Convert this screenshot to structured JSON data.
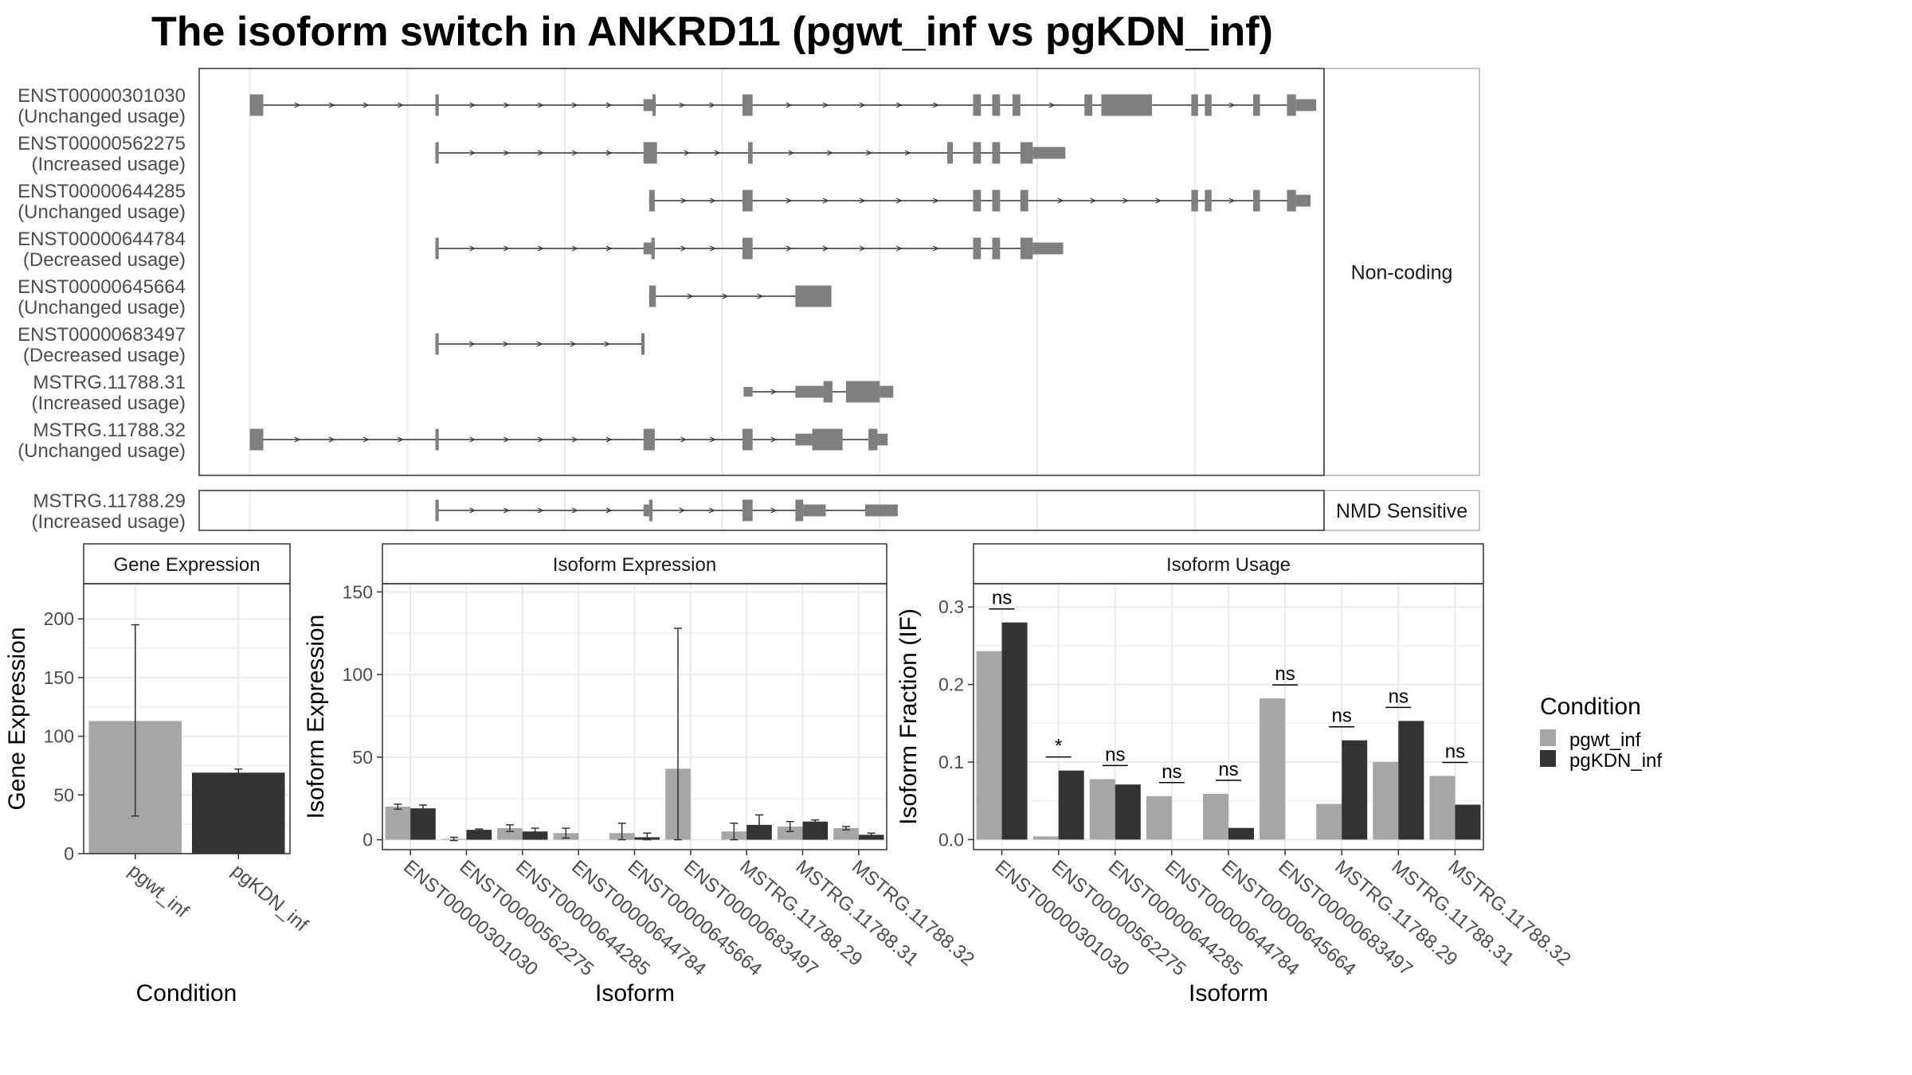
{
  "title": "The isoform switch in ANKRD11 (pgwt_inf vs pgKDN_inf)",
  "colors": {
    "exon": "#7f7f7f",
    "pgwt_inf": "#a6a6a6",
    "pgKDN_inf": "#333333",
    "grid": "#ebebeb",
    "panel_border": "#333333",
    "strip_fill": "#ffffff"
  },
  "chart_data": [
    {
      "type": "gene_structure",
      "facets": [
        "Non-coding",
        "NMD Sensitive"
      ],
      "x_range": [
        0,
        1
      ],
      "gridlines": [
        0.045,
        0.185,
        0.325,
        0.465,
        0.605,
        0.745,
        0.885
      ],
      "transcripts": [
        {
          "id": "ENST00000301030",
          "usage": "(Unchanged usage)",
          "facet": "Non-coding",
          "exons": [
            [
              0.045,
              0.057,
              1
            ],
            [
              0.21,
              0.213,
              1
            ],
            [
              0.395,
              0.405,
              0.55
            ],
            [
              0.405,
              0.403,
              1
            ],
            [
              0.483,
              0.492,
              1
            ],
            [
              0.688,
              0.695,
              1
            ],
            [
              0.705,
              0.712,
              1
            ],
            [
              0.723,
              0.73,
              1
            ],
            [
              0.787,
              0.794,
              1
            ],
            [
              0.802,
              0.847,
              1
            ],
            [
              0.882,
              0.888,
              1
            ],
            [
              0.894,
              0.9,
              1
            ],
            [
              0.937,
              0.943,
              1
            ],
            [
              0.967,
              0.975,
              1
            ],
            [
              0.975,
              0.993,
              0.55
            ]
          ]
        },
        {
          "id": "ENST00000562275",
          "usage": "(Increased usage)",
          "facet": "Non-coding",
          "exons": [
            [
              0.21,
              0.213,
              1
            ],
            [
              0.395,
              0.407,
              1
            ],
            [
              0.488,
              0.492,
              1
            ],
            [
              0.665,
              0.67,
              1
            ],
            [
              0.688,
              0.695,
              1
            ],
            [
              0.705,
              0.712,
              1
            ],
            [
              0.73,
              0.741,
              1
            ],
            [
              0.741,
              0.77,
              0.55
            ]
          ]
        },
        {
          "id": "ENST00000644285",
          "usage": "(Unchanged usage)",
          "facet": "Non-coding",
          "exons": [
            [
              0.4,
              0.405,
              1
            ],
            [
              0.483,
              0.492,
              1
            ],
            [
              0.688,
              0.695,
              1
            ],
            [
              0.705,
              0.712,
              1
            ],
            [
              0.73,
              0.737,
              1
            ],
            [
              0.882,
              0.888,
              1
            ],
            [
              0.894,
              0.9,
              1
            ],
            [
              0.937,
              0.943,
              1
            ],
            [
              0.967,
              0.975,
              1
            ],
            [
              0.975,
              0.988,
              0.55
            ]
          ]
        },
        {
          "id": "ENST00000644784",
          "usage": "(Decreased usage)",
          "facet": "Non-coding",
          "exons": [
            [
              0.21,
              0.213,
              1
            ],
            [
              0.395,
              0.405,
              0.55
            ],
            [
              0.402,
              0.405,
              1
            ],
            [
              0.483,
              0.492,
              1
            ],
            [
              0.688,
              0.695,
              1
            ],
            [
              0.705,
              0.712,
              1
            ],
            [
              0.73,
              0.741,
              1
            ],
            [
              0.741,
              0.768,
              0.55
            ]
          ]
        },
        {
          "id": "ENST00000645664",
          "usage": "(Unchanged usage)",
          "facet": "Non-coding",
          "exons": [
            [
              0.4,
              0.406,
              1
            ],
            [
              0.53,
              0.562,
              1
            ]
          ]
        },
        {
          "id": "ENST00000683497",
          "usage": "(Decreased usage)",
          "facet": "Non-coding",
          "exons": [
            [
              0.21,
              0.213,
              1
            ],
            [
              0.393,
              0.396,
              1
            ]
          ]
        },
        {
          "id": "MSTRG.11788.31",
          "usage": "(Increased usage)",
          "facet": "Non-coding",
          "exons": [
            [
              0.484,
              0.492,
              0.45
            ],
            [
              0.53,
              0.555,
              0.55
            ],
            [
              0.555,
              0.563,
              1
            ],
            [
              0.575,
              0.605,
              1
            ],
            [
              0.605,
              0.617,
              0.55
            ]
          ]
        },
        {
          "id": "MSTRG.11788.32",
          "usage": "(Unchanged usage)",
          "facet": "Non-coding",
          "exons": [
            [
              0.045,
              0.057,
              1
            ],
            [
              0.21,
              0.213,
              1
            ],
            [
              0.395,
              0.405,
              1
            ],
            [
              0.483,
              0.492,
              1
            ],
            [
              0.53,
              0.545,
              0.55
            ],
            [
              0.545,
              0.572,
              1
            ],
            [
              0.595,
              0.603,
              1
            ],
            [
              0.603,
              0.612,
              0.55
            ]
          ]
        },
        {
          "id": "MSTRG.11788.29",
          "usage": "(Increased usage)",
          "facet": "NMD Sensitive",
          "exons": [
            [
              0.21,
              0.213,
              1
            ],
            [
              0.395,
              0.4,
              0.55
            ],
            [
              0.4,
              0.403,
              1
            ],
            [
              0.483,
              0.492,
              1
            ],
            [
              0.53,
              0.537,
              1
            ],
            [
              0.537,
              0.557,
              0.55
            ],
            [
              0.592,
              0.621,
              0.55
            ]
          ]
        }
      ]
    },
    {
      "type": "bar",
      "strip": "Gene Expression",
      "xlabel": "Condition",
      "ylabel": "Gene Expression",
      "ylim": [
        0,
        230
      ],
      "yticks": [
        0,
        50,
        100,
        150,
        200
      ],
      "categories": [
        "pgwt_inf",
        "pgKDN_inf"
      ],
      "values": [
        113,
        69
      ],
      "errors": [
        [
          32,
          195
        ],
        [
          67,
          72
        ]
      ]
    },
    {
      "type": "bar",
      "strip": "Isoform Expression",
      "xlabel": "Isoform",
      "ylabel": "Isoform Expression",
      "ylim": [
        -6,
        155
      ],
      "yticks": [
        0,
        50,
        100,
        150
      ],
      "categories": [
        "ENST00000301030",
        "ENST00000562275",
        "ENST00000644285",
        "ENST00000644784",
        "ENST00000645664",
        "ENST00000683497",
        "MSTRG.11788.29",
        "MSTRG.11788.31",
        "MSTRG.11788.32"
      ],
      "series": [
        {
          "name": "pgwt_inf",
          "values": [
            20,
            0.5,
            7,
            4,
            4,
            43,
            5,
            8,
            7
          ],
          "errors": [
            [
              18.5,
              21.5
            ],
            [
              -0.5,
              1.5
            ],
            [
              5,
              9
            ],
            [
              1,
              7
            ],
            [
              0,
              10
            ],
            [
              0,
              128
            ],
            [
              0,
              10
            ],
            [
              5,
              11
            ],
            [
              6,
              8
            ]
          ]
        },
        {
          "name": "pgKDN_inf",
          "values": [
            19,
            6,
            5,
            0,
            1.5,
            0,
            9,
            11,
            3
          ],
          "errors": [
            [
              17,
              21
            ],
            [
              5.5,
              6.5
            ],
            [
              3,
              7
            ],
            [
              0,
              0
            ],
            [
              0,
              4
            ],
            [
              0,
              0
            ],
            [
              3,
              15
            ],
            [
              10,
              12
            ],
            [
              2,
              4
            ]
          ]
        }
      ]
    },
    {
      "type": "bar",
      "strip": "Isoform Usage",
      "xlabel": "Isoform",
      "ylabel": "Isoform Fraction (IF)",
      "ylim": [
        -0.013,
        0.33
      ],
      "yticks": [
        0.0,
        0.1,
        0.2,
        0.3
      ],
      "ytick_labels": [
        "0.0",
        "0.1",
        "0.2",
        "0.3"
      ],
      "categories": [
        "ENST00000301030",
        "ENST00000562275",
        "ENST00000644285",
        "ENST00000644784",
        "ENST00000645664",
        "ENST00000683497",
        "MSTRG.11788.29",
        "MSTRG.11788.31",
        "MSTRG.11788.32"
      ],
      "series": [
        {
          "name": "pgwt_inf",
          "values": [
            0.243,
            0.004,
            0.078,
            0.056,
            0.059,
            0.182,
            0.046,
            0.1,
            0.082
          ]
        },
        {
          "name": "pgKDN_inf",
          "values": [
            0.28,
            0.089,
            0.071,
            0.0,
            0.015,
            0.0,
            0.128,
            0.153,
            0.045
          ]
        }
      ],
      "significance": [
        "ns",
        "*",
        "ns",
        "ns",
        "ns",
        "ns",
        "ns",
        "ns",
        "ns"
      ]
    }
  ],
  "legend": {
    "title": "Condition",
    "items": [
      {
        "label": "pgwt_inf",
        "color": "#a6a6a6"
      },
      {
        "label": "pgKDN_inf",
        "color": "#333333"
      }
    ]
  }
}
